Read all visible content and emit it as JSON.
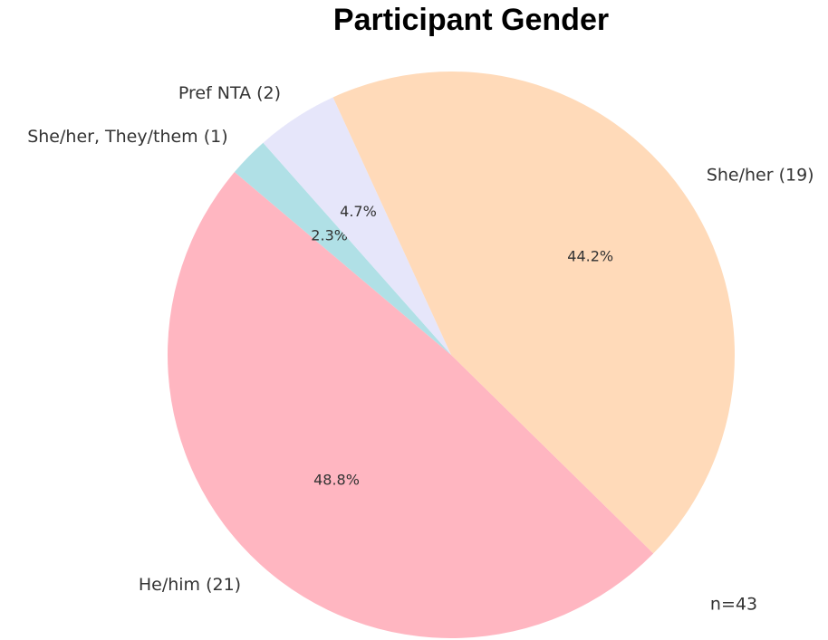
{
  "chart_data": {
    "type": "pie",
    "title": "Participant Gender",
    "categories": [
      "He/him (21)",
      "She/her, They/them (1)",
      "Pref NTA (2)",
      "She/her (19)"
    ],
    "values": [
      48.8,
      2.3,
      4.7,
      44.2
    ],
    "value_labels": [
      "48.8%",
      "2.3%",
      "4.7%",
      "44.2%"
    ],
    "colors": [
      "#ffb6c1",
      "#b0e0e6",
      "#e6e6fa",
      "#ffdab9"
    ],
    "annotation": "n=43"
  }
}
